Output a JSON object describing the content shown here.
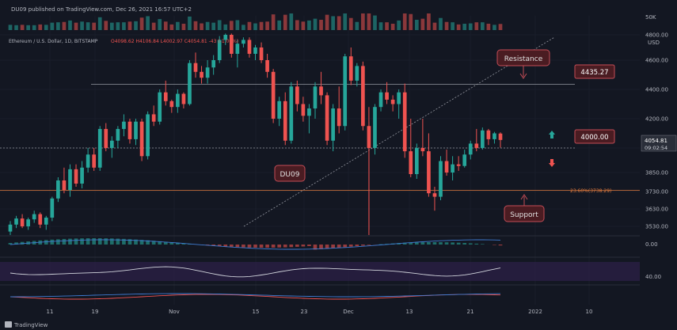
{
  "header": {
    "publisher_line": "DU09 published on TradingView.com, Dec 26, 2021 16:57 UTC+2",
    "symbol_line": "Ethereum / U.S. Dollar, 1D, BITSTAMP",
    "ohlc_line": "O4098.62  H4106.84  L4002.97  C4054.81  -43 (-1.06%)"
  },
  "footer": {
    "brand": "TradingView"
  },
  "colors": {
    "background": "#131722",
    "up": "#26a69a",
    "down": "#ef5350",
    "grid": "#1e2230",
    "annotation_fill": "#4a1c22",
    "annotation_border": "#c44d57"
  },
  "chart_data": {
    "type": "candlestick",
    "currency_label": "USD",
    "y_ticks": [
      3530,
      3630,
      3730,
      3850,
      4000,
      4200,
      4400,
      4600,
      4800
    ],
    "y_tick_labels": [
      "3530.00",
      "3630.00",
      "3730.00",
      "3850.00",
      "4000.00",
      "4200.00",
      "4400.00",
      "4600.00",
      "4800.00"
    ],
    "x_tick_labels": [
      "11",
      "19",
      "Nov",
      "15",
      "23",
      "Dec",
      "13",
      "21",
      "2022",
      "10"
    ],
    "volume_top_label": "50K",
    "current_price": "4054.81",
    "countdown": "09:02:54",
    "levels": {
      "resistance": {
        "value": 4435.27,
        "label": "4435.27",
        "note": "Resistance"
      },
      "support_mid": {
        "value": 4000.0,
        "label": "4000.00"
      },
      "fib": {
        "value": 3738.29,
        "label": "23.60%(3738.29)",
        "note": "Support"
      }
    },
    "watermark_label": "DU09",
    "indicators": {
      "macd_label": "0.00",
      "rsi_label": "40.00"
    },
    "candles": [
      [
        3500,
        3560,
        3480,
        3540
      ],
      [
        3540,
        3590,
        3520,
        3575
      ],
      [
        3575,
        3600,
        3520,
        3530
      ],
      [
        3530,
        3580,
        3510,
        3570
      ],
      [
        3570,
        3620,
        3550,
        3600
      ],
      [
        3600,
        3610,
        3520,
        3540
      ],
      [
        3540,
        3590,
        3510,
        3580
      ],
      [
        3580,
        3700,
        3560,
        3690
      ],
      [
        3690,
        3820,
        3670,
        3800
      ],
      [
        3800,
        3880,
        3720,
        3740
      ],
      [
        3740,
        3900,
        3700,
        3870
      ],
      [
        3870,
        3900,
        3760,
        3780
      ],
      [
        3780,
        3920,
        3750,
        3880
      ],
      [
        3880,
        4000,
        3850,
        3960
      ],
      [
        3960,
        4000,
        3860,
        3880
      ],
      [
        3880,
        4150,
        3860,
        4130
      ],
      [
        4130,
        4170,
        3980,
        4000
      ],
      [
        4000,
        4080,
        3940,
        4050
      ],
      [
        4050,
        4150,
        4000,
        4130
      ],
      [
        4130,
        4230,
        4080,
        4180
      ],
      [
        4180,
        4200,
        4030,
        4060
      ],
      [
        4060,
        4200,
        4020,
        4180
      ],
      [
        4180,
        4200,
        3920,
        3950
      ],
      [
        3950,
        4250,
        3930,
        4230
      ],
      [
        4230,
        4290,
        4150,
        4180
      ],
      [
        4180,
        4400,
        4160,
        4380
      ],
      [
        4380,
        4460,
        4290,
        4320
      ],
      [
        4320,
        4330,
        4240,
        4280
      ],
      [
        4280,
        4400,
        4240,
        4370
      ],
      [
        4370,
        4380,
        4270,
        4300
      ],
      [
        4300,
        4600,
        4290,
        4580
      ],
      [
        4580,
        4660,
        4480,
        4520
      ],
      [
        4520,
        4560,
        4440,
        4480
      ],
      [
        4480,
        4600,
        4440,
        4550
      ],
      [
        4550,
        4640,
        4500,
        4600
      ],
      [
        4600,
        4790,
        4580,
        4760
      ],
      [
        4760,
        4810,
        4720,
        4800
      ],
      [
        4800,
        4810,
        4620,
        4650
      ],
      [
        4650,
        4760,
        4550,
        4730
      ],
      [
        4730,
        4780,
        4700,
        4760
      ],
      [
        4760,
        4780,
        4620,
        4650
      ],
      [
        4650,
        4720,
        4600,
        4700
      ],
      [
        4700,
        4740,
        4580,
        4600
      ],
      [
        4600,
        4650,
        4480,
        4520
      ],
      [
        4520,
        4540,
        4170,
        4200
      ],
      [
        4200,
        4350,
        4150,
        4320
      ],
      [
        4320,
        4380,
        4020,
        4050
      ],
      [
        4050,
        4450,
        4030,
        4420
      ],
      [
        4420,
        4460,
        4250,
        4300
      ],
      [
        4300,
        4350,
        4180,
        4220
      ],
      [
        4220,
        4300,
        4100,
        4270
      ],
      [
        4270,
        4450,
        4200,
        4420
      ],
      [
        4420,
        4520,
        4300,
        4360
      ],
      [
        4360,
        4380,
        4020,
        4050
      ],
      [
        4050,
        4300,
        3980,
        4270
      ],
      [
        4270,
        4420,
        4100,
        4150
      ],
      [
        4150,
        4650,
        4120,
        4630
      ],
      [
        4630,
        4700,
        4430,
        4460
      ],
      [
        4460,
        4580,
        4420,
        4560
      ],
      [
        4560,
        4590,
        4120,
        4150
      ],
      [
        4150,
        4280,
        3480,
        4000
      ],
      [
        4000,
        4300,
        3960,
        4280
      ],
      [
        4280,
        4400,
        4250,
        4380
      ],
      [
        4380,
        4450,
        4300,
        4330
      ],
      [
        4330,
        4360,
        4250,
        4300
      ],
      [
        4300,
        4400,
        4200,
        4380
      ],
      [
        4380,
        4440,
        3940,
        3980
      ],
      [
        3980,
        4200,
        3820,
        3840
      ],
      [
        3840,
        4030,
        3810,
        4000
      ],
      [
        4000,
        4200,
        3950,
        3980
      ],
      [
        3980,
        4100,
        3700,
        3720
      ],
      [
        3720,
        3760,
        3620,
        3700
      ],
      [
        3700,
        3950,
        3680,
        3920
      ],
      [
        3920,
        3990,
        3830,
        3850
      ],
      [
        3850,
        3950,
        3800,
        3900
      ],
      [
        3900,
        3950,
        3860,
        3890
      ],
      [
        3890,
        3990,
        3880,
        3960
      ],
      [
        3960,
        4050,
        3930,
        4030
      ],
      [
        4030,
        4130,
        3980,
        4000
      ],
      [
        4000,
        4140,
        3990,
        4120
      ],
      [
        4120,
        4130,
        4020,
        4060
      ],
      [
        4060,
        4110,
        4030,
        4100
      ],
      [
        4098.62,
        4106.84,
        4002.97,
        4054.81
      ]
    ]
  }
}
